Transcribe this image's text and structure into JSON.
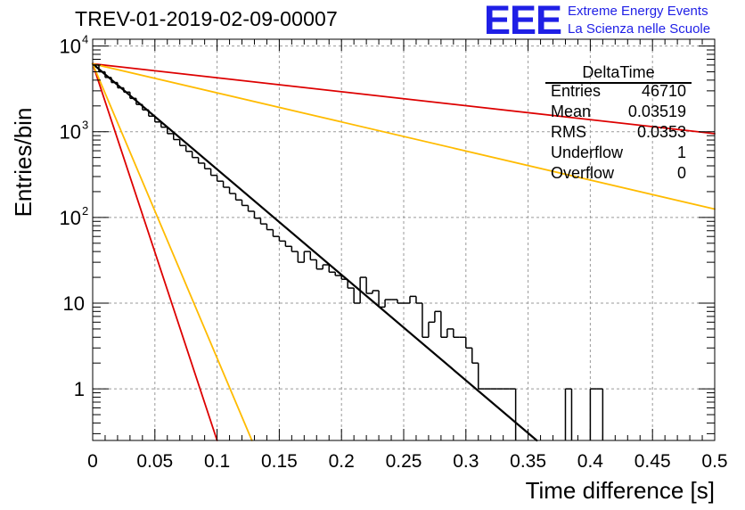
{
  "header": {
    "title": "TREV-01-2019-02-09-00007",
    "logo_text": "EEE",
    "logo_line1": "Extreme Energy Events",
    "logo_line2": "La Scienza nelle Scuole",
    "logo_color": "#1f1fe6"
  },
  "stats_box": {
    "title": "DeltaTime",
    "rows": [
      {
        "key": "Entries",
        "value": "46710"
      },
      {
        "key": "Mean",
        "value": "0.03519"
      },
      {
        "key": "RMS",
        "value": "0.0353"
      },
      {
        "key": "Underflow",
        "value": "1"
      },
      {
        "key": "Overflow",
        "value": "0"
      }
    ]
  },
  "chart_data": {
    "type": "line",
    "title": "TREV-01-2019-02-09-00007",
    "xlabel": "Time difference [s]",
    "ylabel": "Entries/bin",
    "xlim": [
      0,
      0.5
    ],
    "ylim": [
      0.25,
      12000
    ],
    "yscale": "log",
    "grid": true,
    "x_ticks": [
      "0",
      "0.05",
      "0.1",
      "0.15",
      "0.2",
      "0.25",
      "0.3",
      "0.35",
      "0.4",
      "0.45",
      "0.5"
    ],
    "y_ticks": [
      {
        "value": 1,
        "label": "1",
        "sup": ""
      },
      {
        "value": 10,
        "label": "10",
        "sup": ""
      },
      {
        "value": 100,
        "label": "10",
        "sup": "2"
      },
      {
        "value": 1000,
        "label": "10",
        "sup": "3"
      },
      {
        "value": 10000,
        "label": "10",
        "sup": "4"
      }
    ],
    "histogram": {
      "name": "DeltaTime",
      "color": "#000000",
      "bin_width": 0.005,
      "values": [
        6000,
        5000,
        4300,
        3750,
        3250,
        2900,
        2450,
        2080,
        1800,
        1520,
        1300,
        1130,
        950,
        810,
        690,
        590,
        500,
        430,
        370,
        310,
        265,
        225,
        190,
        160,
        138,
        118,
        98,
        84,
        72,
        60,
        53,
        46,
        40,
        30,
        40,
        32,
        25,
        28,
        23,
        21,
        19,
        15,
        10,
        20,
        13,
        14,
        9,
        11,
        11,
        10,
        10,
        12,
        10,
        4,
        6,
        8,
        4,
        5,
        4,
        4,
        3,
        2,
        1,
        1,
        1,
        1,
        1,
        1,
        0,
        0,
        0,
        0,
        0,
        0,
        0,
        0,
        1,
        0,
        0,
        0,
        1,
        1,
        0,
        0,
        0,
        0,
        0,
        0,
        0,
        0,
        0,
        0,
        0,
        0,
        0,
        0,
        0,
        0,
        0,
        0
      ],
      "zero_bins_drawn_from": 0.305
    },
    "fits": [
      {
        "name": "fit",
        "color": "#000000",
        "x": [
          0,
          0.357
        ],
        "y": [
          6200,
          0.25
        ],
        "width": 2.2
      },
      {
        "name": "red-steep",
        "color": "#dd0000",
        "x": [
          0,
          0.1
        ],
        "y": [
          6200,
          0.25
        ],
        "width": 1.8
      },
      {
        "name": "orange-steep",
        "color": "#ffbb00",
        "x": [
          0,
          0.128
        ],
        "y": [
          6200,
          0.25
        ],
        "width": 1.8
      },
      {
        "name": "red-flat",
        "color": "#dd0000",
        "x": [
          0,
          0.5
        ],
        "y": [
          6200,
          950
        ],
        "width": 1.8
      },
      {
        "name": "orange-flat",
        "color": "#ffbb00",
        "x": [
          0,
          0.5
        ],
        "y": [
          6200,
          125
        ],
        "width": 1.8
      }
    ]
  }
}
